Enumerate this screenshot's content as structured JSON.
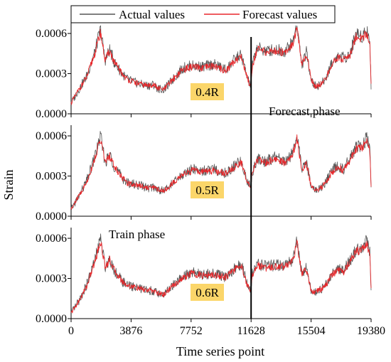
{
  "chart_data": {
    "type": "line",
    "xlabel": "Time series point",
    "ylabel": "Strain",
    "x_ticks": [
      "0",
      "3876",
      "7752",
      "11628",
      "15504",
      "19380"
    ],
    "x_tick_values": [
      0,
      3876,
      7752,
      11628,
      15504,
      19380
    ],
    "y_ticks": [
      "0.0000",
      "0.0003",
      "0.0006"
    ],
    "y_tick_values": [
      0.0,
      0.0003,
      0.0006
    ],
    "xlim": [
      0,
      19380
    ],
    "ylim": [
      0.0,
      0.00068
    ],
    "split_x": 11628,
    "legend": {
      "placement": "top",
      "entries": [
        "Actual values",
        "Forecast values"
      ]
    },
    "colors": {
      "actual": "#555555",
      "forecast": "#e8272b",
      "tag_bg": "#fbd66a",
      "divider": "#000000"
    },
    "annotations": {
      "forecast_phase": "Forecast phase",
      "train_phase": "Train phase"
    },
    "panels": [
      {
        "tag": "0.4R",
        "x": [
          0,
          500,
          1000,
          1500,
          1900,
          2200,
          2500,
          2800,
          3300,
          3600,
          4000,
          4500,
          5000,
          5300,
          5600,
          6000,
          6600,
          7200,
          7800,
          8500,
          9200,
          10000,
          10600,
          11000,
          11400,
          11600,
          11700,
          12000,
          12600,
          13200,
          13800,
          14300,
          14600,
          14900,
          15200,
          15500,
          15700,
          16000,
          16400,
          16800,
          17200,
          17600,
          18000,
          18400,
          18800,
          19100,
          19300,
          19380
        ],
        "series": [
          {
            "name": "Actual values",
            "values": [
              8e-05,
              0.00018,
              0.00028,
              0.00045,
              0.00063,
              0.0004,
              0.00048,
              0.00038,
              0.0003,
              0.00026,
              0.00024,
              0.00022,
              0.00021,
              0.00022,
              0.00019,
              0.00018,
              0.00026,
              0.00034,
              0.00036,
              0.00035,
              0.00037,
              0.00033,
              0.00041,
              0.00044,
              0.00026,
              0.00021,
              0.00036,
              0.00049,
              0.00047,
              0.00048,
              0.00047,
              0.00053,
              0.00067,
              0.00036,
              0.00046,
              0.00027,
              0.00021,
              0.00021,
              0.00025,
              0.00037,
              0.00043,
              0.00042,
              0.00044,
              0.0006,
              0.00058,
              0.00063,
              0.00054,
              0.00021
            ]
          },
          {
            "name": "Forecast values",
            "values": [
              8e-05,
              0.00018,
              0.00027,
              0.00044,
              0.00061,
              0.0004,
              0.00047,
              0.00038,
              0.0003,
              0.00026,
              0.00024,
              0.00022,
              0.00021,
              0.00022,
              0.00019,
              0.00018,
              0.00026,
              0.00033,
              0.00035,
              0.00034,
              0.00036,
              0.00032,
              0.0004,
              0.00043,
              0.00026,
              0.00021,
              0.00035,
              0.00048,
              0.00046,
              0.00047,
              0.00046,
              0.00052,
              0.00064,
              0.00036,
              0.00045,
              0.00027,
              0.00021,
              0.00021,
              0.00025,
              0.00036,
              0.00042,
              0.00041,
              0.00043,
              0.00058,
              0.00056,
              0.0006,
              0.00053,
              0.00021
            ]
          }
        ]
      },
      {
        "tag": "0.5R",
        "x": [
          0,
          500,
          1000,
          1500,
          1900,
          2200,
          2500,
          2800,
          3300,
          3600,
          4000,
          4500,
          5000,
          5300,
          5600,
          6000,
          6600,
          7200,
          7800,
          8500,
          9200,
          10000,
          10600,
          11000,
          11400,
          11600,
          11700,
          12000,
          12600,
          13200,
          13800,
          14300,
          14600,
          14900,
          15200,
          15500,
          15700,
          16000,
          16400,
          16800,
          17200,
          17600,
          18000,
          18400,
          18800,
          19100,
          19300,
          19380
        ],
        "series": [
          {
            "name": "Actual values",
            "values": [
              5e-05,
              0.00015,
              0.00026,
              0.00043,
              0.0006,
              0.0004,
              0.00046,
              0.00037,
              0.00029,
              0.00025,
              0.00024,
              0.00023,
              0.00021,
              0.00022,
              0.0002,
              0.00019,
              0.00025,
              0.00031,
              0.00035,
              0.00034,
              0.00035,
              0.00032,
              0.00038,
              0.00041,
              0.00025,
              0.00023,
              0.00032,
              0.00043,
              0.00041,
              0.00044,
              0.00041,
              0.00047,
              0.0006,
              0.00035,
              0.0004,
              0.00023,
              0.0002,
              0.0002,
              0.00024,
              0.00033,
              0.00038,
              0.00035,
              0.00043,
              0.00051,
              0.00052,
              0.00058,
              0.0005,
              0.00022
            ]
          },
          {
            "name": "Forecast values",
            "values": [
              5e-05,
              0.00015,
              0.00025,
              0.00042,
              0.00058,
              0.0004,
              0.00045,
              0.00037,
              0.00029,
              0.00025,
              0.00024,
              0.00023,
              0.00021,
              0.00022,
              0.0002,
              0.00019,
              0.00025,
              0.00031,
              0.00034,
              0.00033,
              0.00034,
              0.00032,
              0.00037,
              0.0004,
              0.00025,
              0.00023,
              0.00032,
              0.00042,
              0.0004,
              0.00043,
              0.0004,
              0.00046,
              0.00058,
              0.00035,
              0.00039,
              0.00023,
              0.0002,
              0.0002,
              0.00024,
              0.00032,
              0.00037,
              0.00034,
              0.00042,
              0.0005,
              0.00051,
              0.00056,
              0.00049,
              0.00022
            ]
          }
        ]
      },
      {
        "tag": "0.6R",
        "x": [
          0,
          500,
          1000,
          1500,
          1900,
          2200,
          2500,
          2800,
          3300,
          3600,
          4000,
          4500,
          5000,
          5300,
          5600,
          6000,
          6600,
          7200,
          7800,
          8500,
          9200,
          10000,
          10600,
          11000,
          11400,
          11600,
          11700,
          12000,
          12600,
          13200,
          13800,
          14300,
          14600,
          14900,
          15200,
          15500,
          15700,
          16000,
          16400,
          16800,
          17200,
          17600,
          18000,
          18400,
          18800,
          19100,
          19300,
          19380
        ],
        "series": [
          {
            "name": "Actual values",
            "values": [
              4e-05,
              0.00013,
              0.00025,
              0.00042,
              0.0006,
              0.00039,
              0.00045,
              0.00036,
              0.00028,
              0.00025,
              0.00024,
              0.00022,
              0.00021,
              0.00021,
              0.00019,
              0.00018,
              0.00025,
              0.00031,
              0.00035,
              0.00033,
              0.00034,
              0.00031,
              0.00038,
              0.00041,
              0.00024,
              0.00022,
              0.00033,
              0.00041,
              0.00039,
              0.0004,
              0.0004,
              0.00044,
              0.00058,
              0.00034,
              0.00038,
              0.00021,
              0.0002,
              0.00021,
              0.00024,
              0.00033,
              0.00037,
              0.00036,
              0.00043,
              0.00051,
              0.00053,
              0.00058,
              0.00049,
              0.00022
            ]
          },
          {
            "name": "Forecast values",
            "values": [
              4e-05,
              0.00013,
              0.00024,
              0.00041,
              0.00058,
              0.00039,
              0.00044,
              0.00036,
              0.00028,
              0.00025,
              0.00024,
              0.00022,
              0.00021,
              0.00021,
              0.00019,
              0.00018,
              0.00025,
              0.0003,
              0.00034,
              0.00032,
              0.00033,
              0.00031,
              0.00037,
              0.0004,
              0.00024,
              0.00022,
              0.00032,
              0.0004,
              0.00038,
              0.00039,
              0.00039,
              0.00043,
              0.00056,
              0.00034,
              0.00037,
              0.00021,
              0.0002,
              0.00021,
              0.00024,
              0.00032,
              0.00036,
              0.00035,
              0.00042,
              0.0005,
              0.00052,
              0.00056,
              0.00048,
              0.00022
            ]
          }
        ]
      }
    ]
  }
}
